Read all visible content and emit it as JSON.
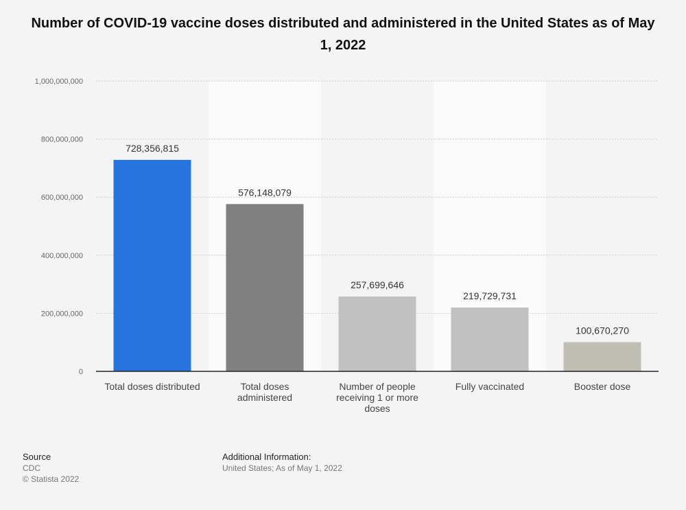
{
  "chart_data": {
    "type": "bar",
    "title": "Number of COVID-19 vaccine doses distributed and administered in the United States as of May 1, 2022",
    "categories": [
      [
        "Total doses distributed"
      ],
      [
        "Total doses",
        "administered"
      ],
      [
        "Number of people",
        "receiving 1 or more",
        "doses"
      ],
      [
        "Fully vaccinated"
      ],
      [
        "Booster dose"
      ]
    ],
    "values": [
      728356815,
      576148079,
      257699646,
      219729731,
      100670270
    ],
    "value_labels": [
      "728,356,815",
      "576,148,079",
      "257,699,646",
      "219,729,731",
      "100,670,270"
    ],
    "colors": [
      "#2874de",
      "#808080",
      "#c1c1c1",
      "#c1c1c1",
      "#c1bfb3"
    ],
    "ylim": [
      0,
      1000000000
    ],
    "yticks": [
      0,
      200000000,
      400000000,
      600000000,
      800000000,
      1000000000
    ],
    "ytick_labels": [
      "0",
      "200,000,000",
      "400,000,000",
      "600,000,000",
      "800,000,000",
      "1,000,000,000"
    ],
    "xlabel": "",
    "ylabel": "",
    "grid": true,
    "legend": "none"
  },
  "footer": {
    "source_label": "Source",
    "source_name": "CDC",
    "copyright": "© Statista 2022",
    "info_label": "Additional Information:",
    "info_text": "United States; As of May 1, 2022"
  }
}
